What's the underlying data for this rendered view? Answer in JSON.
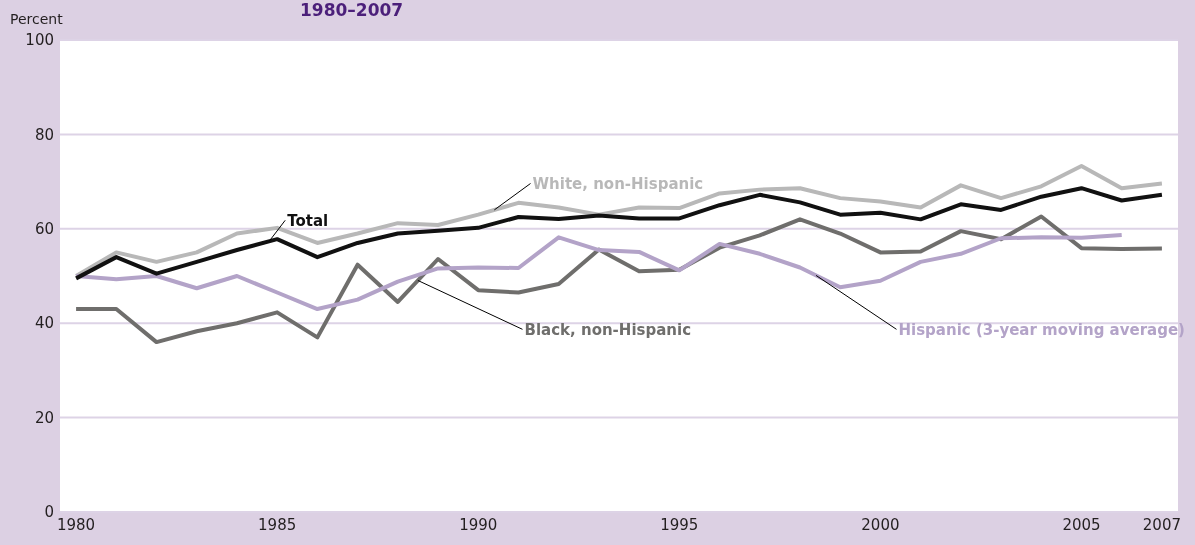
{
  "chart_data": {
    "type": "line",
    "title": "1980–2007",
    "ylabel": "Percent",
    "x": [
      1980,
      1981,
      1982,
      1983,
      1984,
      1985,
      1986,
      1987,
      1988,
      1989,
      1990,
      1991,
      1992,
      1993,
      1994,
      1995,
      1996,
      1997,
      1998,
      1999,
      2000,
      2001,
      2002,
      2003,
      2004,
      2005,
      2006,
      2007
    ],
    "series": [
      {
        "name": "White, non-Hispanic",
        "color": "#b8b8b8",
        "values": [
          50,
          55,
          53,
          55,
          59,
          60.2,
          57,
          59,
          61.2,
          60.8,
          63,
          65.5,
          64.5,
          63,
          64.5,
          64.4,
          67.5,
          68.3,
          68.6,
          66.5,
          65.8,
          64.5,
          69.2,
          66.5,
          69,
          73.3,
          68.6,
          69.6
        ]
      },
      {
        "name": "Black, non-Hispanic",
        "color": "#6f6e6c",
        "values": [
          43,
          43,
          36,
          38.3,
          40,
          42.3,
          37,
          52.4,
          44.5,
          53.6,
          47,
          46.5,
          48.3,
          55.6,
          51,
          51.3,
          56,
          58.6,
          62,
          59,
          55,
          55.2,
          59.5,
          57.8,
          62.6,
          55.9,
          55.7,
          55.8
        ]
      },
      {
        "name": "Hispanic (3-year moving average)",
        "color": "#b3a3c8",
        "values": [
          50,
          49.3,
          50,
          47.4,
          50,
          46.5,
          43,
          45,
          48.8,
          51.6,
          51.8,
          51.7,
          58.2,
          55.5,
          55.1,
          51.2,
          56.8,
          54.7,
          51.8,
          47.6,
          49,
          53,
          54.7,
          58,
          58.2,
          58.1,
          58.7,
          null
        ]
      },
      {
        "name": "Total",
        "color": "#111111",
        "values": [
          49.5,
          54,
          50.5,
          53,
          55.5,
          57.8,
          54,
          57,
          59,
          59.6,
          60.2,
          62.5,
          62.1,
          62.8,
          62.2,
          62.2,
          65,
          67.2,
          65.6,
          63,
          63.4,
          62,
          65.2,
          64,
          66.8,
          68.6,
          66,
          67.2
        ]
      }
    ],
    "xlim": [
      1979.6,
      2007.4
    ],
    "xticks": [
      1980,
      1985,
      1990,
      1995,
      2000,
      2005,
      2007
    ],
    "ylim": [
      0,
      100
    ],
    "yticks": [
      0,
      20,
      40,
      60,
      80,
      100
    ],
    "grid": "y",
    "line_style": "solid",
    "marker": "none"
  }
}
